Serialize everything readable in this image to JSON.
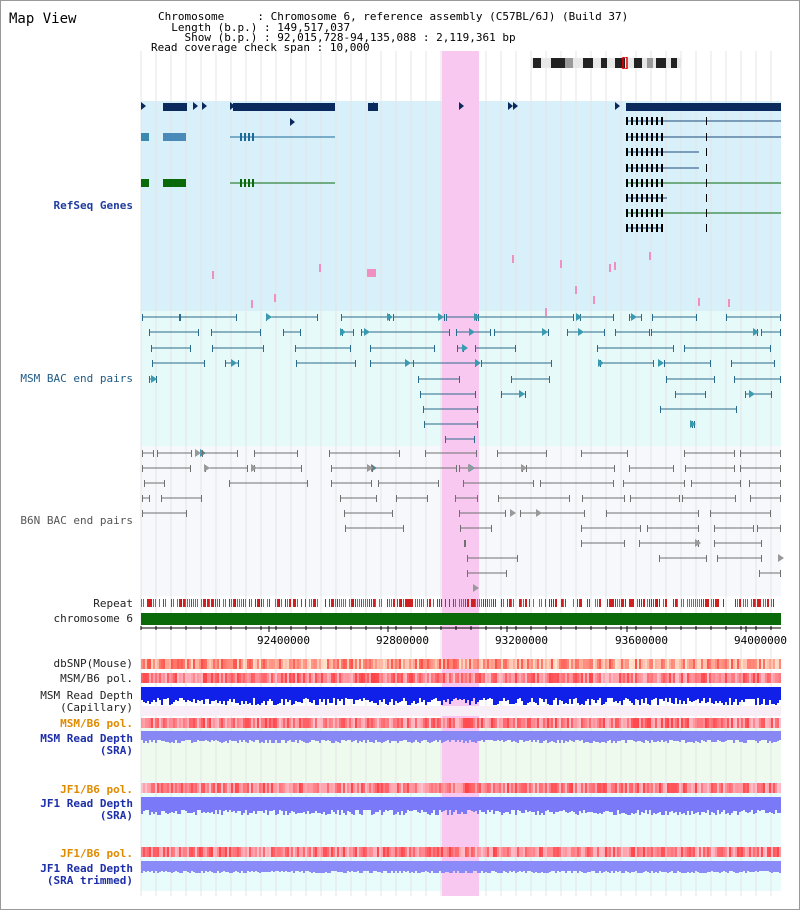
{
  "page": {
    "title": "Map View"
  },
  "info": {
    "chromosome_key": "Chromosome",
    "chromosome_val": "Chromosome 6, reference assembly (C57BL/6J) (Build 37)",
    "length_key": "Length (b.p.)",
    "length_val": "149,517,037",
    "show_key": "Show (b.p.)",
    "show_val": "92,015,728-94,135,088 : 2,119,361 bp",
    "span_key": "Read coverage check span",
    "span_val": "10,000"
  },
  "tracks": {
    "refseq": "RefSeq Genes",
    "msm_bac": "MSM BAC end pairs",
    "b6n_bac": "B6N BAC end pairs",
    "repeat": "Repeat",
    "chromosome": "chromosome 6",
    "dbsnp": "dbSNP(Mouse)",
    "msm_pol": "MSM/B6 pol.",
    "msm_depth_cap_1": "MSM Read Depth",
    "msm_depth_cap_2": "(Capillary)",
    "msm_pol_sra": "MSM/B6 pol.",
    "msm_depth_sra_1": "MSM Read Depth",
    "msm_depth_sra_2": "(SRA)",
    "jf1_pol": "JF1/B6 pol.",
    "jf1_depth_1": "JF1 Read Depth",
    "jf1_depth_2": "(SRA)",
    "jf1_pol_trim": "JF1/B6 pol.",
    "jf1_depth_trim_1": "JF1 Read Depth",
    "jf1_depth_trim_2": "(SRA trimmed)"
  },
  "axis": {
    "ticks": [
      "92400000",
      "92800000",
      "93200000",
      "93600000",
      "94000000"
    ]
  },
  "colors": {
    "refseq_bg": "#d8f0fa",
    "msm_bg": "#e6fafa",
    "b6n_bg": "#f6f8fc",
    "highlight": "#f9c8f0",
    "gene_dark": "#0a2a5e",
    "gene_green": "#0a6a0a",
    "chromosome_bar": "#0a6a0a",
    "depth_blue": "#1020e8",
    "depth_light": "#7a7af8"
  }
}
